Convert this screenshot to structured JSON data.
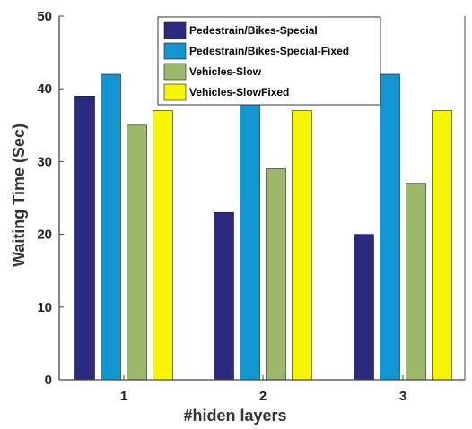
{
  "chart_data": {
    "type": "bar",
    "title": "",
    "xlabel": "#hiden layers",
    "ylabel": "Waiting Time (Sec)",
    "categories": [
      "1",
      "2",
      "3"
    ],
    "ylim": [
      0,
      50
    ],
    "yticks": [
      0,
      10,
      20,
      30,
      40,
      50
    ],
    "grid": false,
    "legend_position": "top-center",
    "series": [
      {
        "name": "Pedestrain/Bikes-Special",
        "color": "#2b2a80",
        "values": [
          39,
          23,
          20
        ]
      },
      {
        "name": "Pedestrain/Bikes-Special-Fixed",
        "color": "#1296d1",
        "values": [
          42,
          42,
          42
        ]
      },
      {
        "name": "Vehicles-Slow",
        "color": "#9cb86a",
        "values": [
          35,
          29,
          27
        ]
      },
      {
        "name": "Vehicles-SlowFixed",
        "color": "#f5f500",
        "values": [
          37,
          37,
          37
        ]
      }
    ]
  }
}
